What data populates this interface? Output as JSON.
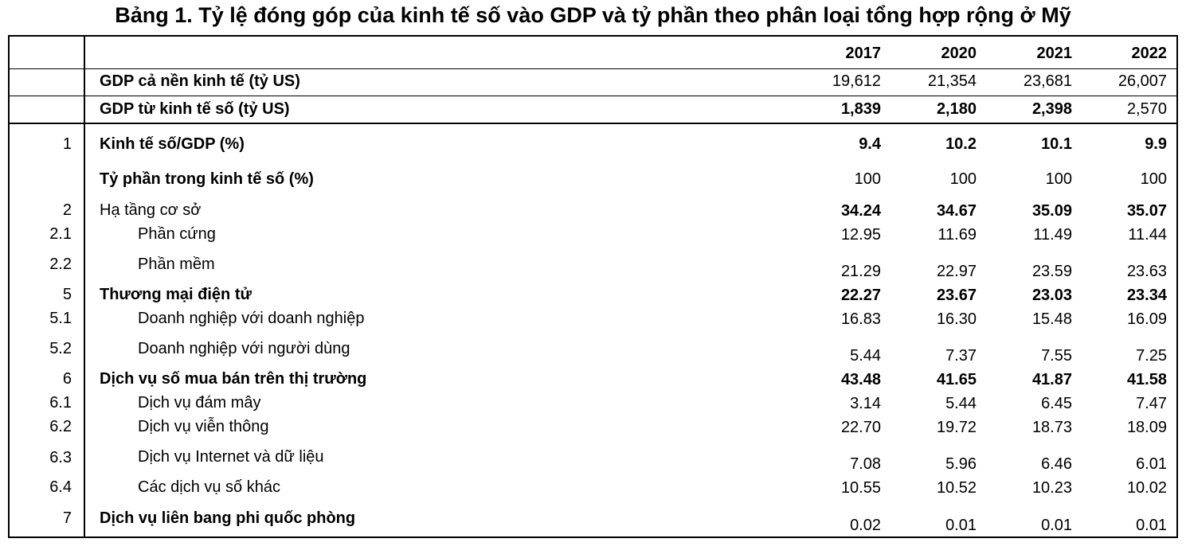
{
  "title": "Bảng 1. Tỷ lệ đóng góp của kinh tế số vào GDP và tỷ phần theo phân loại tổng hợp rộng ở Mỹ",
  "years": [
    "2017",
    "2020",
    "2021",
    "2022"
  ],
  "rows": [
    {
      "idx": "",
      "label": "GDP cả nền kinh tế (tỷ US)",
      "v": [
        "19,612",
        "21,354",
        "23,681",
        "26,007"
      ]
    },
    {
      "idx": "",
      "label": "GDP từ kinh tế số (tỷ US)",
      "v": [
        "1,839",
        "2,180",
        "2,398",
        "2,570"
      ]
    },
    {
      "idx": "1",
      "label": "Kinh tế số/GDP (%)",
      "v": [
        "9.4",
        "10.2",
        "10.1",
        "9.9"
      ]
    },
    {
      "idx": "",
      "label": "Tỷ phần trong kinh tế số (%)",
      "v": [
        "100",
        "100",
        "100",
        "100"
      ]
    },
    {
      "idx": "2",
      "label": "Hạ tầng cơ sở",
      "v": [
        "34.24",
        "34.67",
        "35.09",
        "35.07"
      ]
    },
    {
      "idx": "2.1",
      "label": "Phần cứng",
      "v": [
        "12.95",
        "11.69",
        "11.49",
        "11.44"
      ]
    },
    {
      "idx": "2.2",
      "label": "Phần mềm",
      "v": [
        "21.29",
        "22.97",
        "23.59",
        "23.63"
      ]
    },
    {
      "idx": "5",
      "label": "Thương mại điện tử",
      "v": [
        "22.27",
        "23.67",
        "23.03",
        "23.34"
      ]
    },
    {
      "idx": "5.1",
      "label": "Doanh nghiệp với doanh nghiệp",
      "v": [
        "16.83",
        "16.30",
        "15.48",
        "16.09"
      ]
    },
    {
      "idx": "5.2",
      "label": "Doanh nghiệp với người dùng",
      "v": [
        "5.44",
        "7.37",
        "7.55",
        "7.25"
      ]
    },
    {
      "idx": "6",
      "label": "Dịch vụ số mua bán trên thị trường",
      "v": [
        "43.48",
        "41.65",
        "41.87",
        "41.58"
      ]
    },
    {
      "idx": "6.1",
      "label": "Dịch vụ đám mây",
      "v": [
        "3.14",
        "5.44",
        "6.45",
        "7.47"
      ]
    },
    {
      "idx": "6.2",
      "label": "Dịch vụ viễn thông",
      "v": [
        "22.70",
        "19.72",
        "18.73",
        "18.09"
      ]
    },
    {
      "idx": "6.3",
      "label": "Dịch vụ Internet và dữ liệu",
      "v": [
        "7.08",
        "5.96",
        "6.46",
        "6.01"
      ]
    },
    {
      "idx": "6.4",
      "label": "Các dịch vụ số khác",
      "v": [
        "10.55",
        "10.52",
        "10.23",
        "10.02"
      ]
    },
    {
      "idx": "7",
      "label": "Dịch vụ liên bang phi quốc phòng",
      "v": [
        "0.02",
        "0.01",
        "0.01",
        "0.01"
      ]
    }
  ]
}
